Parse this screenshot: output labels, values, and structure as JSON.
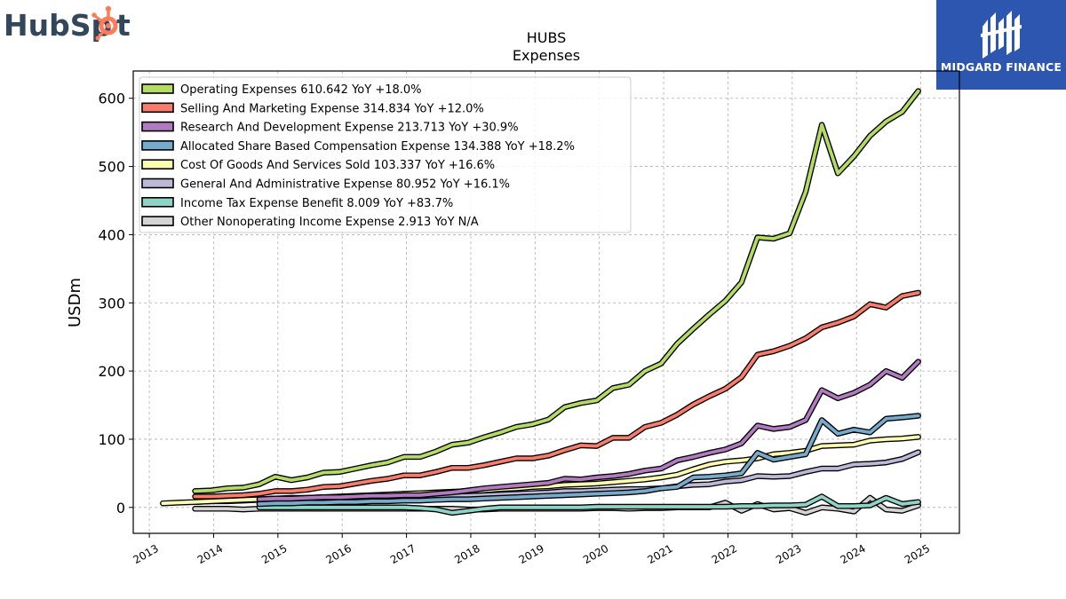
{
  "brand_left": {
    "text_1": "HubSp",
    "text_2": "t",
    "color": "#33475b",
    "accent": "#ff7a59"
  },
  "brand_right": {
    "name": "MIDGARD FINANCE",
    "bg": "#2d56b0"
  },
  "chart_data": {
    "type": "line",
    "title": "HUBS",
    "subtitle": "Expenses",
    "ylabel": "USDm",
    "xlabel": "",
    "ylim": [
      -38,
      640
    ],
    "xlim": [
      2012.75,
      2025.6
    ],
    "yticks": [
      0,
      100,
      200,
      300,
      400,
      500,
      600
    ],
    "xticks": [
      "2013",
      "2014",
      "2015",
      "2016",
      "2017",
      "2018",
      "2019",
      "2020",
      "2021",
      "2022",
      "2023",
      "2024",
      "2025"
    ],
    "grid": true,
    "legend_position": "top-left",
    "series": [
      {
        "name": "Operating Expenses  610.642 YoY +18.0%",
        "color": "#b4dc64",
        "x": [
          2013.71,
          2013.96,
          2014.21,
          2014.46,
          2014.71,
          2014.96,
          2015.21,
          2015.46,
          2015.71,
          2015.96,
          2016.21,
          2016.46,
          2016.71,
          2016.96,
          2017.21,
          2017.46,
          2017.71,
          2017.96,
          2018.21,
          2018.46,
          2018.71,
          2018.96,
          2019.21,
          2019.46,
          2019.71,
          2019.96,
          2020.21,
          2020.46,
          2020.71,
          2020.96,
          2021.21,
          2021.46,
          2021.71,
          2021.96,
          2022.21,
          2022.46,
          2022.71,
          2022.96,
          2023.21,
          2023.46,
          2023.71,
          2023.96,
          2024.21,
          2024.46,
          2024.71,
          2024.96
        ],
        "values": [
          24,
          25,
          28,
          29,
          34,
          45,
          40,
          44,
          51,
          52,
          57,
          62,
          66,
          74,
          74,
          82,
          92,
          95,
          103,
          110,
          118,
          122,
          129,
          147,
          153,
          157,
          175,
          180,
          200,
          211,
          240,
          262,
          283,
          303,
          330,
          396,
          394,
          402,
          463,
          561,
          490,
          515,
          545,
          566,
          580,
          610.6
        ]
      },
      {
        "name": "Selling And Marketing Expense  314.834 YoY +12.0%",
        "color": "#f87c6c",
        "x": [
          2013.71,
          2013.96,
          2014.21,
          2014.46,
          2014.71,
          2014.96,
          2015.21,
          2015.46,
          2015.71,
          2015.96,
          2016.21,
          2016.46,
          2016.71,
          2016.96,
          2017.21,
          2017.46,
          2017.71,
          2017.96,
          2018.21,
          2018.46,
          2018.71,
          2018.96,
          2019.21,
          2019.46,
          2019.71,
          2019.96,
          2020.21,
          2020.46,
          2020.71,
          2020.96,
          2021.21,
          2021.46,
          2021.71,
          2021.96,
          2022.21,
          2022.46,
          2022.71,
          2022.96,
          2023.21,
          2023.46,
          2023.71,
          2023.96,
          2024.21,
          2024.46,
          2024.71,
          2024.96
        ],
        "values": [
          16,
          16,
          17,
          18,
          20,
          24,
          24,
          26,
          30,
          31,
          35,
          39,
          42,
          47,
          47,
          52,
          58,
          58,
          62,
          67,
          72,
          72,
          76,
          84,
          91,
          90,
          102,
          102,
          118,
          124,
          136,
          151,
          163,
          174,
          191,
          224,
          229,
          237,
          248,
          264,
          271,
          280,
          298,
          293,
          310,
          314.8
        ]
      },
      {
        "name": "Research And Development Expense  213.713 YoY +30.9%",
        "color": "#b27bc0",
        "x": [
          2014.71,
          2014.96,
          2015.21,
          2015.46,
          2015.71,
          2015.96,
          2016.21,
          2016.46,
          2016.71,
          2016.96,
          2017.21,
          2017.46,
          2017.71,
          2017.96,
          2018.21,
          2018.46,
          2018.71,
          2018.96,
          2019.21,
          2019.46,
          2019.71,
          2019.96,
          2020.21,
          2020.46,
          2020.71,
          2020.96,
          2021.21,
          2021.46,
          2021.71,
          2021.96,
          2022.21,
          2022.46,
          2022.71,
          2022.96,
          2023.21,
          2023.46,
          2023.71,
          2023.96,
          2024.21,
          2024.46,
          2024.71,
          2024.96
        ],
        "values": [
          12,
          13,
          13,
          14,
          15,
          15,
          16,
          17,
          17,
          18,
          18,
          20,
          22,
          25,
          28,
          30,
          32,
          34,
          36,
          42,
          41,
          44,
          46,
          49,
          54,
          57,
          69,
          74,
          80,
          85,
          94,
          120,
          115,
          118,
          128,
          172,
          160,
          168,
          180,
          200,
          190,
          213.7
        ]
      },
      {
        "name": "Allocated Share Based Compensation Expense  134.388 YoY +18.2%",
        "color": "#78aacc",
        "x": [
          2014.71,
          2014.96,
          2015.21,
          2015.46,
          2015.71,
          2015.96,
          2016.21,
          2016.46,
          2016.71,
          2016.96,
          2017.21,
          2017.46,
          2017.71,
          2017.96,
          2018.21,
          2018.46,
          2018.71,
          2018.96,
          2019.21,
          2019.46,
          2019.71,
          2019.96,
          2020.21,
          2020.46,
          2020.71,
          2020.96,
          2021.21,
          2021.46,
          2021.71,
          2021.96,
          2022.21,
          2022.46,
          2022.71,
          2022.96,
          2023.21,
          2023.46,
          2023.71,
          2023.96,
          2024.21,
          2024.46,
          2024.71,
          2024.96
        ],
        "values": [
          5,
          6,
          6,
          7,
          7,
          8,
          8,
          9,
          9,
          10,
          10,
          11,
          12,
          12,
          13,
          14,
          15,
          16,
          17,
          18,
          19,
          20,
          21,
          22,
          24,
          28,
          30,
          44,
          45,
          47,
          50,
          80,
          70,
          74,
          78,
          128,
          108,
          114,
          110,
          130,
          132,
          134.4
        ]
      },
      {
        "name": "Cost Of Goods And Services Sold  103.337 YoY +16.6%",
        "color": "#fdfdb0",
        "x": [
          2013.21,
          2013.46,
          2013.71,
          2013.96,
          2014.21,
          2014.46,
          2014.71,
          2014.96,
          2015.21,
          2015.46,
          2015.71,
          2015.96,
          2016.21,
          2016.46,
          2016.71,
          2016.96,
          2017.21,
          2017.46,
          2017.71,
          2017.96,
          2018.21,
          2018.46,
          2018.71,
          2018.96,
          2019.21,
          2019.46,
          2019.71,
          2019.96,
          2020.21,
          2020.46,
          2020.71,
          2020.96,
          2021.21,
          2021.46,
          2021.71,
          2021.96,
          2022.21,
          2022.46,
          2022.71,
          2022.96,
          2023.21,
          2023.46,
          2023.71,
          2023.96,
          2024.21,
          2024.46,
          2024.71,
          2024.96
        ],
        "values": [
          6,
          7,
          8,
          9,
          10,
          11,
          12,
          13,
          14,
          14,
          15,
          16,
          17,
          18,
          19,
          20,
          21,
          22,
          23,
          24,
          25,
          27,
          28,
          30,
          31,
          33,
          34,
          35,
          37,
          39,
          41,
          44,
          48,
          56,
          63,
          67,
          69,
          72,
          78,
          80,
          83,
          90,
          91,
          92,
          98,
          100,
          101,
          103.3
        ]
      },
      {
        "name": "General And Administrative Expense  80.952 YoY +16.1%",
        "color": "#bcb8d8",
        "x": [
          2013.71,
          2013.96,
          2014.21,
          2014.46,
          2014.71,
          2014.96,
          2015.21,
          2015.46,
          2015.71,
          2015.96,
          2016.21,
          2016.46,
          2016.71,
          2016.96,
          2017.21,
          2017.46,
          2017.71,
          2017.96,
          2018.21,
          2018.46,
          2018.71,
          2018.96,
          2019.21,
          2019.46,
          2019.71,
          2019.96,
          2020.21,
          2020.46,
          2020.71,
          2020.96,
          2021.21,
          2021.46,
          2021.71,
          2021.96,
          2022.21,
          2022.46,
          2022.71,
          2022.96,
          2023.21,
          2023.46,
          2023.71,
          2023.96,
          2024.21,
          2024.46,
          2024.71,
          2024.96
        ],
        "values": [
          8,
          9,
          9,
          10,
          11,
          12,
          12,
          13,
          13,
          14,
          14,
          14,
          14,
          15,
          15,
          16,
          16,
          17,
          18,
          19,
          20,
          21,
          22,
          24,
          24,
          25,
          26,
          27,
          27,
          28,
          31,
          33,
          34,
          38,
          40,
          46,
          45,
          46,
          52,
          57,
          57,
          63,
          64,
          66,
          71,
          81.0
        ]
      },
      {
        "name": "Income Tax Expense Benefit  8.009 YoY +83.7%",
        "color": "#8ed4c6",
        "x": [
          2014.71,
          2014.96,
          2015.21,
          2015.46,
          2015.71,
          2015.96,
          2016.21,
          2016.46,
          2016.71,
          2016.96,
          2017.21,
          2017.46,
          2017.71,
          2017.96,
          2018.21,
          2018.46,
          2018.71,
          2018.96,
          2019.21,
          2019.46,
          2019.71,
          2019.96,
          2020.21,
          2020.46,
          2020.71,
          2020.96,
          2021.21,
          2021.46,
          2021.71,
          2021.96,
          2022.21,
          2022.46,
          2022.71,
          2022.96,
          2023.21,
          2023.46,
          2023.71,
          2023.96,
          2024.21,
          2024.46,
          2024.71,
          2024.96
        ],
        "values": [
          0,
          0,
          0,
          0,
          0,
          0,
          0,
          0,
          0,
          0,
          -1,
          -3,
          -8,
          -5,
          -2,
          0,
          0,
          0,
          0,
          0,
          0,
          1,
          1,
          1,
          1,
          1,
          1,
          1,
          1,
          1,
          2,
          2,
          3,
          3,
          4,
          16,
          2,
          2,
          3,
          14,
          5,
          8.0
        ]
      },
      {
        "name": "Other Nonoperating Income Expense  2.913 YoY N/A",
        "color": "#d4d4d4",
        "x": [
          2013.71,
          2013.96,
          2014.21,
          2014.46,
          2014.71,
          2014.96,
          2015.21,
          2015.46,
          2015.71,
          2015.96,
          2016.21,
          2016.46,
          2016.71,
          2016.96,
          2017.21,
          2017.46,
          2017.71,
          2017.96,
          2018.21,
          2018.46,
          2018.71,
          2018.96,
          2019.21,
          2019.46,
          2019.71,
          2019.96,
          2020.21,
          2020.46,
          2020.71,
          2020.96,
          2021.21,
          2021.46,
          2021.71,
          2021.96,
          2022.21,
          2022.46,
          2022.71,
          2022.96,
          2023.21,
          2023.46,
          2023.71,
          2023.96,
          2024.21,
          2024.46,
          2024.71,
          2024.96
        ],
        "values": [
          -2,
          -2,
          -2,
          -3,
          -2,
          -2,
          -2,
          -2,
          -2,
          -2,
          -2,
          -2,
          -2,
          -2,
          -2,
          -2,
          -2,
          -3,
          -3,
          -2,
          -2,
          -2,
          -2,
          -2,
          -2,
          -1,
          -1,
          -2,
          -1,
          -1,
          0,
          0,
          0,
          7,
          -5,
          5,
          -3,
          -1,
          -8,
          0,
          -2,
          -6,
          14,
          -3,
          -5,
          2.9
        ]
      }
    ]
  }
}
